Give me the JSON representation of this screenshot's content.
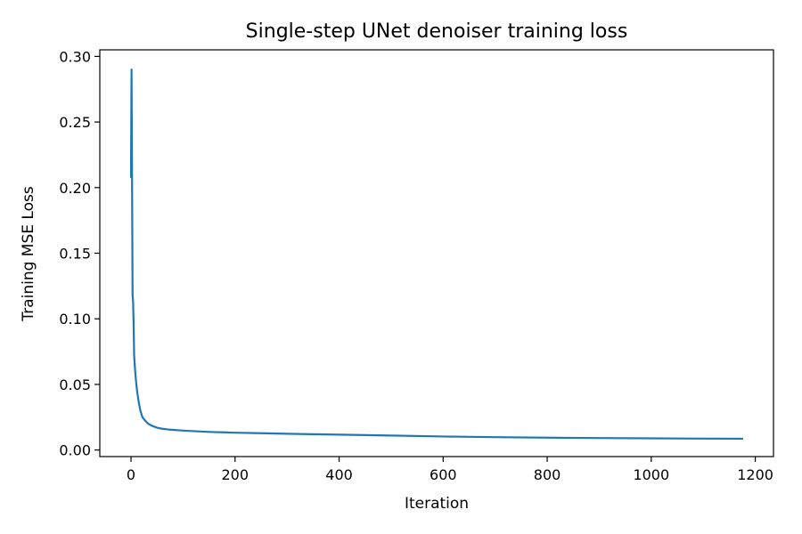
{
  "chart_data": {
    "type": "line",
    "title": "Single-step UNet denoiser training loss",
    "xlabel": "Iteration",
    "ylabel": "Training MSE Loss",
    "xlim": [
      -60,
      1235
    ],
    "ylim": [
      -0.005,
      0.305
    ],
    "xticks": [
      0,
      200,
      400,
      600,
      800,
      1000,
      1200
    ],
    "xtick_labels": [
      "0",
      "200",
      "400",
      "600",
      "800",
      "1000",
      "1200"
    ],
    "yticks": [
      0.0,
      0.05,
      0.1,
      0.15,
      0.2,
      0.25,
      0.3
    ],
    "ytick_labels": [
      "0.00",
      "0.05",
      "0.10",
      "0.15",
      "0.20",
      "0.25",
      "0.30"
    ],
    "grid": false,
    "legend": "none",
    "series": [
      {
        "color": "#1f77b4",
        "x": [
          0,
          1,
          2,
          3,
          4,
          5,
          6,
          8,
          10,
          12,
          15,
          18,
          22,
          27,
          33,
          40,
          50,
          60,
          75,
          100,
          150,
          200,
          250,
          300,
          400,
          500,
          600,
          700,
          800,
          900,
          1000,
          1100,
          1175
        ],
        "y": [
          0.208,
          0.29,
          0.205,
          0.118,
          0.113,
          0.096,
          0.072,
          0.06,
          0.051,
          0.044,
          0.036,
          0.03,
          0.025,
          0.0225,
          0.02,
          0.0185,
          0.017,
          0.0162,
          0.0155,
          0.0148,
          0.0138,
          0.0132,
          0.0128,
          0.0124,
          0.0117,
          0.011,
          0.0103,
          0.0098,
          0.0094,
          0.0091,
          0.0089,
          0.0087,
          0.0086
        ]
      }
    ]
  }
}
